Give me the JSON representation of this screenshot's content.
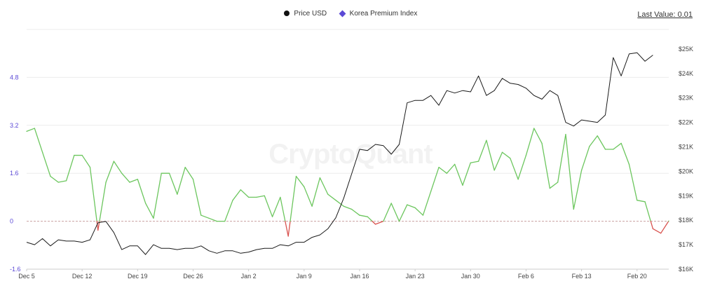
{
  "legend": {
    "price_label": "Price USD",
    "kpi_label": "Korea Premium Index",
    "price_color": "#111111",
    "kpi_color": "#5b49d6"
  },
  "last_value_text": "Last Value: 0.01",
  "watermark": "CryptoQuant",
  "colors": {
    "price_line": "#1a1a1a",
    "kpi_positive": "#6cc65e",
    "kpi_negative": "#d9534f",
    "left_axis": "#5b49d6",
    "right_axis": "#444444",
    "x_axis": "#444444",
    "grid": "#ececec",
    "zero_line": "#c9a0a0"
  },
  "chart_data": {
    "type": "line",
    "x_labels": [
      "Dec 5",
      "Dec 12",
      "Dec 19",
      "Dec 26",
      "Jan 2",
      "Jan 9",
      "Jan 16",
      "Jan 23",
      "Jan 30",
      "Feb 6",
      "Feb 13",
      "Feb 20"
    ],
    "y_left": {
      "ticks": [
        "4.8",
        "3.2",
        "1.6",
        "0",
        "-1.6"
      ],
      "range": [
        -1.6,
        6.4
      ]
    },
    "y_right": {
      "ticks": [
        "$25K",
        "$24K",
        "$23K",
        "$22K",
        "$21K",
        "$20K",
        "$19K",
        "$18K",
        "$17K",
        "$16K"
      ],
      "range": [
        16000,
        25800
      ]
    },
    "series": [
      {
        "name": "Price USD",
        "axis": "right",
        "start_date": "2022-12-05",
        "values": [
          17100,
          17000,
          17250,
          16950,
          17200,
          17150,
          17150,
          17100,
          17200,
          17900,
          17950,
          17500,
          16800,
          16950,
          16950,
          16600,
          17000,
          16850,
          16850,
          16800,
          16850,
          16850,
          16950,
          16750,
          16650,
          16750,
          16750,
          16650,
          16700,
          16800,
          16850,
          16850,
          17000,
          16950,
          17100,
          17100,
          17300,
          17400,
          17650,
          18100,
          18900,
          19900,
          20900,
          20850,
          21100,
          21050,
          20700,
          21100,
          22800,
          22900,
          22900,
          23100,
          22700,
          23300,
          23200,
          23300,
          23250,
          23900,
          23100,
          23300,
          23800,
          23600,
          23550,
          23400,
          23100,
          22950,
          23300,
          23100,
          22000,
          21850,
          22100,
          22050,
          22000,
          22300,
          24650,
          23900,
          24800,
          24850,
          24500,
          24750
        ]
      },
      {
        "name": "Korea Premium Index",
        "axis": "left",
        "start_date": "2022-12-05",
        "values": [
          3.0,
          3.1,
          2.3,
          1.5,
          1.3,
          1.35,
          2.2,
          2.2,
          1.8,
          -0.3,
          1.3,
          2.0,
          1.6,
          1.3,
          1.4,
          0.6,
          0.1,
          1.6,
          1.6,
          0.9,
          1.8,
          1.4,
          0.2,
          0.1,
          0.0,
          0.0,
          0.7,
          1.05,
          0.8,
          0.8,
          0.85,
          0.15,
          0.8,
          -0.5,
          1.5,
          1.15,
          0.5,
          1.45,
          0.9,
          0.7,
          0.5,
          0.4,
          0.2,
          0.15,
          -0.1,
          0.0,
          0.6,
          0.0,
          0.55,
          0.45,
          0.2,
          1.0,
          1.8,
          1.6,
          1.9,
          1.2,
          1.95,
          2.0,
          2.7,
          1.7,
          2.3,
          2.1,
          1.4,
          2.2,
          3.1,
          2.6,
          1.1,
          1.3,
          2.9,
          0.4,
          1.7,
          2.5,
          2.85,
          2.4,
          2.4,
          2.6,
          1.9,
          0.7,
          0.65,
          -0.25,
          -0.4,
          0.01
        ]
      }
    ]
  }
}
